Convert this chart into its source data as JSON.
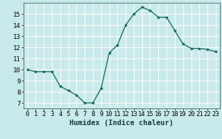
{
  "x": [
    0,
    1,
    2,
    3,
    4,
    5,
    6,
    7,
    8,
    9,
    10,
    11,
    12,
    13,
    14,
    15,
    16,
    17,
    18,
    19,
    20,
    21,
    22,
    23
  ],
  "y": [
    10.0,
    9.8,
    9.8,
    9.8,
    8.5,
    8.1,
    7.7,
    7.0,
    7.0,
    8.3,
    11.5,
    12.2,
    14.0,
    15.0,
    15.6,
    15.3,
    14.7,
    14.7,
    13.5,
    12.3,
    11.9,
    11.9,
    11.8,
    11.6
  ],
  "line_color": "#1a6b5a",
  "marker_color": "#1a6b5a",
  "bg_color": "#c8eaea",
  "grid_color": "#ffffff",
  "xlabel": "Humidex (Indice chaleur)",
  "xlim": [
    -0.5,
    23.5
  ],
  "ylim": [
    6.5,
    16.0
  ],
  "yticks": [
    7,
    8,
    9,
    10,
    11,
    12,
    13,
    14,
    15
  ],
  "xticks": [
    0,
    1,
    2,
    3,
    4,
    5,
    6,
    7,
    8,
    9,
    10,
    11,
    12,
    13,
    14,
    15,
    16,
    17,
    18,
    19,
    20,
    21,
    22,
    23
  ],
  "tick_fontsize": 6.5,
  "xlabel_fontsize": 7.5
}
